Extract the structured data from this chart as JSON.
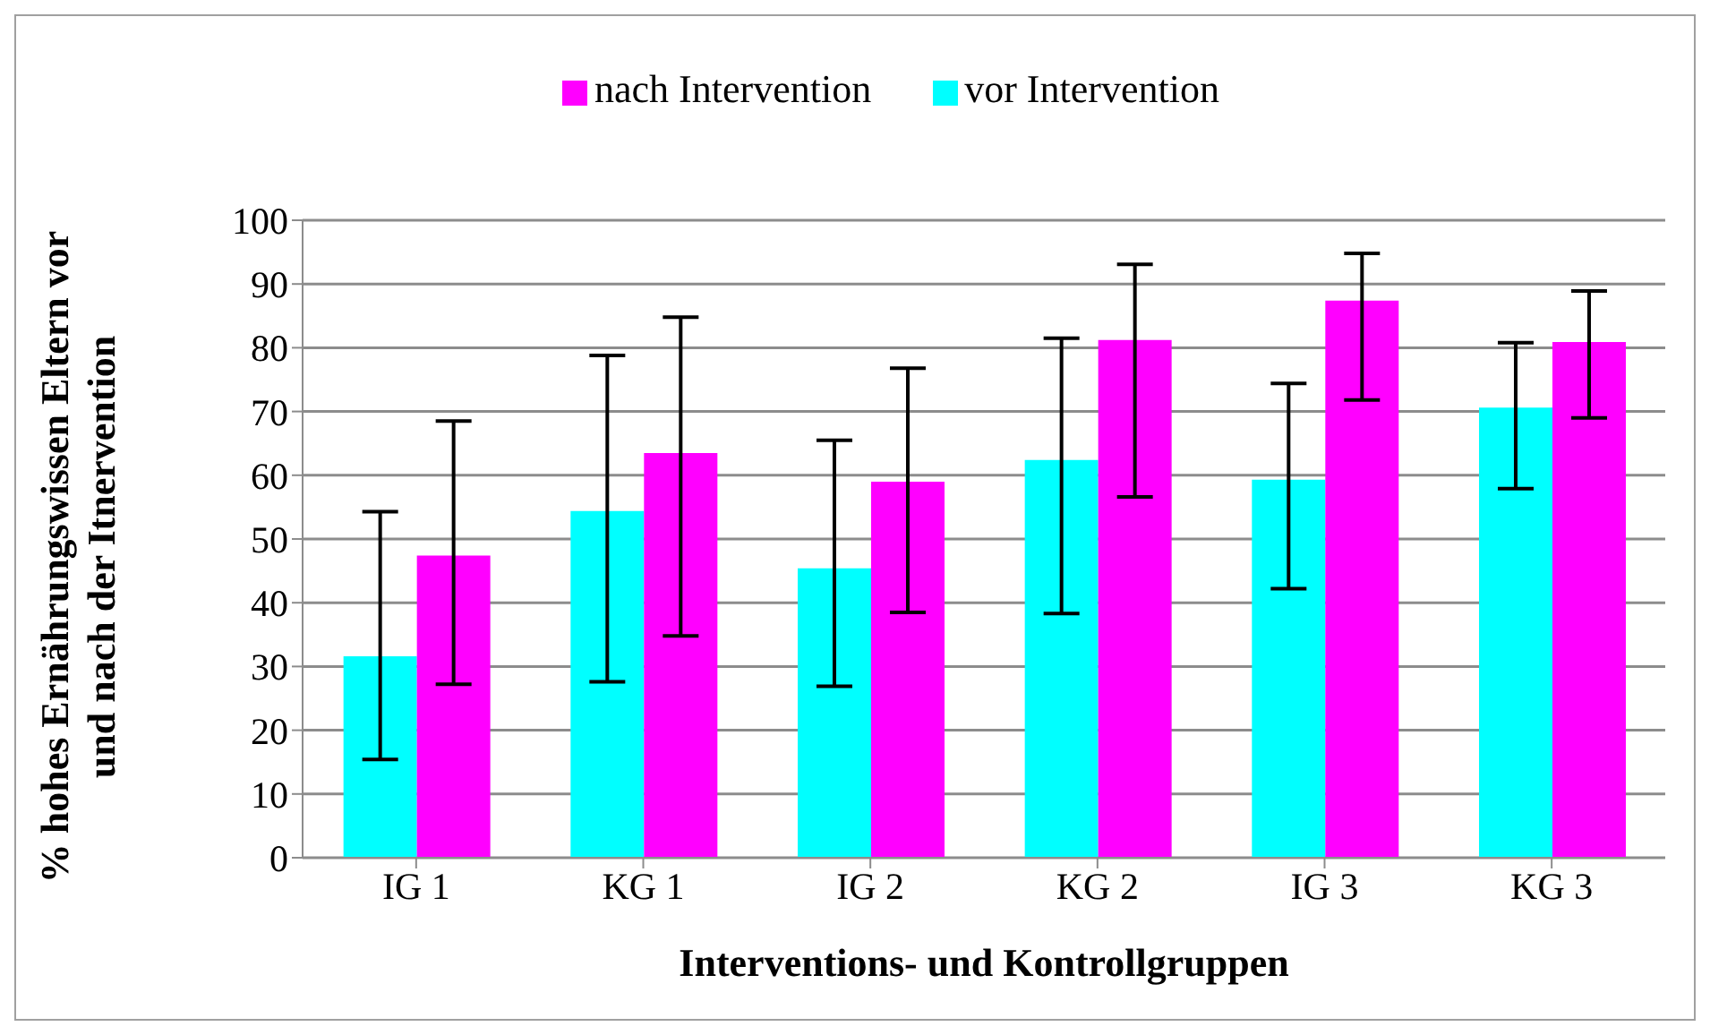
{
  "chart_data": {
    "type": "bar",
    "xlabel": "Interventions- und Kontrollgruppen",
    "ylabel": "% hohes Ernährungswissen Eltern vor und nach der Itnervention",
    "categories": [
      "IG 1",
      "KG 1",
      "IG 2",
      "KG 2",
      "IG 3",
      "KG 3"
    ],
    "series": [
      {
        "name": "vor Intervention",
        "color": "#00ffff",
        "values": [
          31.6,
          54.4,
          45.4,
          62.4,
          59.3,
          70.6
        ],
        "errors": [
          [
            15.4,
            54.3
          ],
          [
            27.6,
            78.8
          ],
          [
            26.9,
            65.5
          ],
          [
            38.3,
            81.5
          ],
          [
            42.2,
            74.4
          ],
          [
            57.9,
            80.8
          ]
        ]
      },
      {
        "name": "nach Intervention",
        "color": "#ff00ff",
        "values": [
          47.4,
          63.5,
          59.0,
          81.2,
          87.4,
          80.9
        ],
        "errors": [
          [
            27.2,
            68.5
          ],
          [
            34.8,
            84.8
          ],
          [
            38.5,
            76.8
          ],
          [
            56.6,
            93.1
          ],
          [
            71.8,
            94.8
          ],
          [
            69.0,
            88.9
          ]
        ]
      }
    ],
    "ylim": [
      0,
      100
    ],
    "yticks": [
      0,
      10,
      20,
      30,
      40,
      50,
      60,
      70,
      80,
      90,
      100
    ],
    "grid": "y",
    "legend": "top"
  }
}
